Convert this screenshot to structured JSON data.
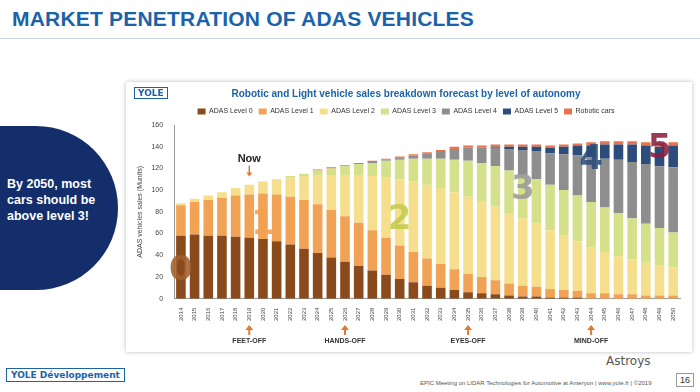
{
  "page": {
    "title": "MARKET PENETRATION OF ADAS VEHICLES",
    "callout": "By 2050, most cars should be above level 3!",
    "chart_logo": "YOLE",
    "logo": "YOLE Développement",
    "watermark": "Astroys",
    "footer": "EPIC Meeting on LIDAR Technologies for Automotive at Anteryon | www.yole.fr | ©2019",
    "page_number": "16"
  },
  "chart_data": {
    "type": "bar",
    "title": "Robotic and Light vehicle sales breakdown forecast by level of autonomy",
    "y_label": "ADAS vehicles sales (Munits)",
    "categories": [
      "2014",
      "2015",
      "2016",
      "2017",
      "2018",
      "2019",
      "2020",
      "2021",
      "2022",
      "2023",
      "2024",
      "2025",
      "2026",
      "2027",
      "2028",
      "2029",
      "2030",
      "2031",
      "2032",
      "2033",
      "2034",
      "2035",
      "2036",
      "2037",
      "2038",
      "2039",
      "2040",
      "2041",
      "2042",
      "2043",
      "2044",
      "2045",
      "2046",
      "2047",
      "2048",
      "2049",
      "2050"
    ],
    "series": [
      {
        "name": "ADAS Level 0",
        "color": "#8b4a1c",
        "values": [
          58,
          59,
          58,
          58,
          57,
          56,
          55,
          53,
          50,
          46,
          42,
          38,
          34,
          30,
          26,
          22,
          18,
          15,
          12,
          10,
          8,
          6,
          5,
          4,
          3,
          2,
          2,
          1,
          1,
          1,
          0,
          0,
          0,
          0,
          0,
          0,
          0
        ]
      },
      {
        "name": "ADAS Level 1",
        "color": "#f2a254",
        "values": [
          28,
          30,
          33,
          35,
          38,
          40,
          42,
          43,
          44,
          45,
          45,
          44,
          42,
          40,
          37,
          34,
          31,
          28,
          25,
          22,
          19,
          17,
          15,
          13,
          11,
          10,
          9,
          8,
          7,
          6,
          5,
          5,
          4,
          4,
          3,
          3,
          3
        ]
      },
      {
        "name": "ADAS Level 2",
        "color": "#f6df8c",
        "values": [
          2,
          3,
          4,
          5,
          7,
          9,
          11,
          14,
          18,
          22,
          27,
          32,
          38,
          44,
          50,
          56,
          61,
          65,
          68,
          70,
          71,
          71,
          70,
          68,
          65,
          62,
          58,
          54,
          50,
          46,
          42,
          38,
          35,
          32,
          30,
          28,
          26
        ]
      },
      {
        "name": "ADAS Level 3",
        "color": "#d5e08a",
        "values": [
          0,
          0,
          0,
          0,
          0,
          0,
          0,
          0,
          1,
          2,
          4,
          6,
          8,
          10,
          12,
          15,
          18,
          21,
          24,
          27,
          30,
          33,
          35,
          37,
          39,
          40,
          41,
          42,
          42,
          42,
          42,
          41,
          40,
          38,
          36,
          34,
          32
        ]
      },
      {
        "name": "ADAS Level 4",
        "color": "#8e8e8e",
        "values": [
          0,
          0,
          0,
          0,
          0,
          0,
          0,
          0,
          0,
          0,
          0,
          0,
          0,
          0,
          1,
          1,
          2,
          3,
          5,
          7,
          10,
          12,
          14,
          17,
          20,
          23,
          26,
          29,
          33,
          37,
          41,
          45,
          49,
          52,
          55,
          57,
          60
        ]
      },
      {
        "name": "ADAS Level 5",
        "color": "#2c4c7c",
        "values": [
          0,
          0,
          0,
          0,
          0,
          0,
          0,
          0,
          0,
          0,
          0,
          0,
          0,
          0,
          0,
          0,
          0,
          0,
          0,
          0,
          0,
          0,
          0,
          1,
          2,
          3,
          4,
          5,
          7,
          9,
          11,
          13,
          14,
          16,
          17,
          18,
          20
        ]
      },
      {
        "name": "Robotic cars",
        "color": "#e8734a",
        "values": [
          0,
          0,
          0,
          0,
          0,
          0,
          0,
          0,
          0,
          0,
          1,
          1,
          1,
          1,
          1,
          1,
          1,
          1,
          1,
          1,
          2,
          2,
          2,
          2,
          2,
          2,
          2,
          2,
          2,
          2,
          3,
          3,
          3,
          3,
          3,
          3,
          3
        ]
      }
    ],
    "stacked": true,
    "legend": "top",
    "grid": false,
    "ylim": [
      0,
      160
    ],
    "yticks": [
      0,
      20,
      40,
      60,
      80,
      100,
      120,
      140,
      160
    ],
    "now_marker": {
      "text": "Now",
      "x": "2019",
      "y": 118
    },
    "annotations": [
      {
        "text": "0",
        "x": "2014",
        "y": 25,
        "color": "#a0602c"
      },
      {
        "text": "1",
        "x": "2020",
        "y": 68,
        "color": "#f0a050"
      },
      {
        "text": "2",
        "x": "2030",
        "y": 72,
        "color": "#bfcc4c"
      },
      {
        "text": "3",
        "x": "2039",
        "y": 100,
        "color": "#9a9a9a"
      },
      {
        "text": "4",
        "x": "2044",
        "y": 128,
        "color": "#2c4c7c"
      },
      {
        "text": "5",
        "x": "2049",
        "y": 138,
        "color": "#8a2040"
      }
    ],
    "milestones": [
      {
        "text": "FEET-OFF",
        "x": "2019"
      },
      {
        "text": "HANDS-OFF",
        "x": "2026"
      },
      {
        "text": "EYES-OFF",
        "x": "2035"
      },
      {
        "text": "MIND-OFF",
        "x": "2044"
      }
    ]
  }
}
